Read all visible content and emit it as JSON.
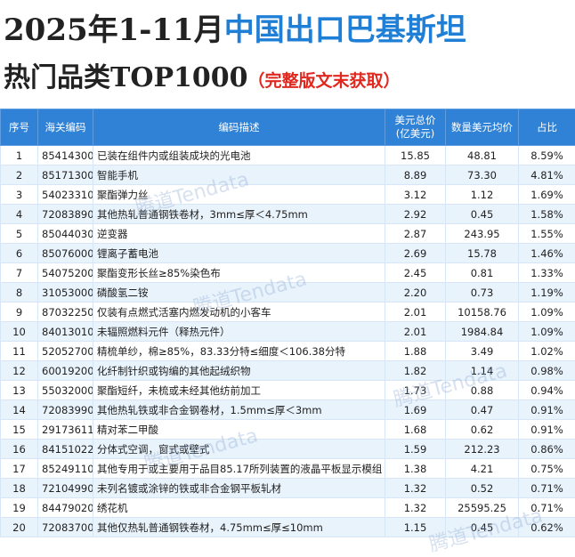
{
  "header": {
    "title_part1": "2025年1-11月",
    "title_part2": "中国出口巴基斯坦",
    "subtitle": "热门品类TOP1000",
    "note": "（完整版文末获取）"
  },
  "watermark": "腾道Tendata",
  "table": {
    "columns": [
      "序号",
      "海关编码",
      "编码描述",
      "美元总价",
      "数量美元均价",
      "占比"
    ],
    "unit": "(亿美元)",
    "rows": [
      [
        "1",
        "85414300",
        "已装在组件内或组装成块的光电池",
        "15.85",
        "48.81",
        "8.59%"
      ],
      [
        "2",
        "85171300",
        "智能手机",
        "8.89",
        "73.30",
        "4.81%"
      ],
      [
        "3",
        "54023310",
        "聚酯弹力丝",
        "3.12",
        "1.12",
        "1.69%"
      ],
      [
        "4",
        "72083890",
        "其他热轧普通钢铁卷材，3mm≤厚＜4.75mm",
        "2.92",
        "0.45",
        "1.58%"
      ],
      [
        "5",
        "85044030",
        "逆变器",
        "2.87",
        "243.95",
        "1.55%"
      ],
      [
        "6",
        "85076000",
        "锂离子蓄电池",
        "2.69",
        "15.78",
        "1.46%"
      ],
      [
        "7",
        "54075200",
        "聚酯变形长丝≥85%染色布",
        "2.45",
        "0.81",
        "1.33%"
      ],
      [
        "8",
        "31053000",
        "磷酸氢二铵",
        "2.20",
        "0.73",
        "1.19%"
      ],
      [
        "9",
        "87032250",
        "仅装有点燃式活塞内燃发动机的小客车",
        "2.01",
        "10158.76",
        "1.09%"
      ],
      [
        "10",
        "84013010",
        "未辐照燃料元件（释热元件）",
        "2.01",
        "1984.84",
        "1.09%"
      ],
      [
        "11",
        "52052700",
        "精梳单纱，棉≥85%，83.33分特≤细度＜106.38分特",
        "1.88",
        "3.49",
        "1.02%"
      ],
      [
        "12",
        "60019200",
        "化纤制针织或钩编的其他起绒织物",
        "1.82",
        "1.14",
        "0.98%"
      ],
      [
        "13",
        "55032000",
        "聚酯短纤，未梳或未经其他纺前加工",
        "1.73",
        "0.88",
        "0.94%"
      ],
      [
        "14",
        "72083990",
        "其他热轧铁或非合金钢卷材，1.5mm≤厚＜3mm",
        "1.69",
        "0.47",
        "0.91%"
      ],
      [
        "15",
        "29173611",
        "精对苯二甲酸",
        "1.68",
        "0.62",
        "0.91%"
      ],
      [
        "16",
        "84151022",
        "分体式空调，窗式或壁式",
        "1.59",
        "212.23",
        "0.86%"
      ],
      [
        "17",
        "85249110",
        "其他专用于或主要用于品目85.17所列装置的液晶平板显示模组",
        "1.38",
        "4.21",
        "0.75%"
      ],
      [
        "18",
        "72104990",
        "未列名镀或涂锌的铁或非合金钢平板轧材",
        "1.32",
        "0.52",
        "0.71%"
      ],
      [
        "19",
        "84479020",
        "绣花机",
        "1.32",
        "25595.25",
        "0.71%"
      ],
      [
        "20",
        "72083700",
        "其他仅热轧普通钢铁卷材，4.75mm≤厚≤10mm",
        "1.15",
        "0.45",
        "0.62%"
      ]
    ]
  }
}
